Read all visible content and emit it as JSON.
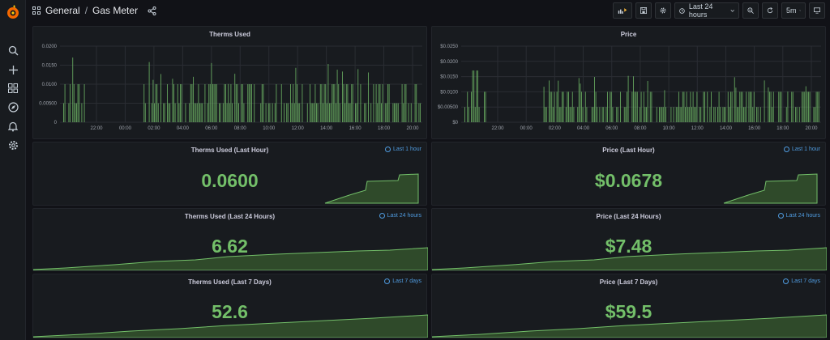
{
  "breadcrumb": {
    "folder": "General",
    "separator": "/",
    "dashboard": "Gas Meter"
  },
  "toolbar": {
    "time_range": "Last 24 hours",
    "refresh": "5m"
  },
  "colors": {
    "accent": "#73bf69",
    "link": "#4f9bdf",
    "logo": "#f46800"
  },
  "panels": {
    "therms_used": {
      "title": "Therms Used",
      "yticks": [
        "0.0200",
        "0.0150",
        "0.0100",
        "0.00500",
        "0"
      ],
      "xticks": [
        "22:00",
        "00:00",
        "02:00",
        "04:00",
        "06:00",
        "08:00",
        "10:00",
        "12:00",
        "14:00",
        "16:00",
        "18:00",
        "20:00"
      ]
    },
    "price": {
      "title": "Price",
      "yticks": [
        "$0.0250",
        "$0.0200",
        "$0.0150",
        "$0.0100",
        "$0.00500",
        "$0"
      ],
      "xticks": [
        "22:00",
        "00:00",
        "02:00",
        "04:00",
        "06:00",
        "08:00",
        "10:00",
        "12:00",
        "14:00",
        "16:00",
        "18:00",
        "20:00"
      ]
    },
    "therms_hour": {
      "title": "Therms Used (Last Hour)",
      "range": "Last 1 hour",
      "value": "0.0600"
    },
    "price_hour": {
      "title": "Price (Last Hour)",
      "range": "Last 1 hour",
      "value": "$0.0678"
    },
    "therms_24h": {
      "title": "Therms Used (Last 24 Hours)",
      "range": "Last 24 hours",
      "value": "6.62"
    },
    "price_24h": {
      "title": "Price (Last 24 Hours)",
      "range": "Last 24 hours",
      "value": "$7.48"
    },
    "therms_7d": {
      "title": "Therms Used (Last 7 Days)",
      "range": "Last 7 days",
      "value": "52.6"
    },
    "price_7d": {
      "title": "Price (Last 7 Days)",
      "range": "Last 7 days",
      "value": "$59.5"
    }
  },
  "icons": [
    "grafana-logo-icon",
    "search-icon",
    "plus-icon",
    "dashboards-icon",
    "explore-icon",
    "alert-bell-icon",
    "gear-icon",
    "share-icon",
    "add-panel-icon",
    "save-icon",
    "settings-icon",
    "clock-icon",
    "chevron-down-icon",
    "zoom-out-icon",
    "refresh-icon",
    "tv-mode-icon"
  ]
}
